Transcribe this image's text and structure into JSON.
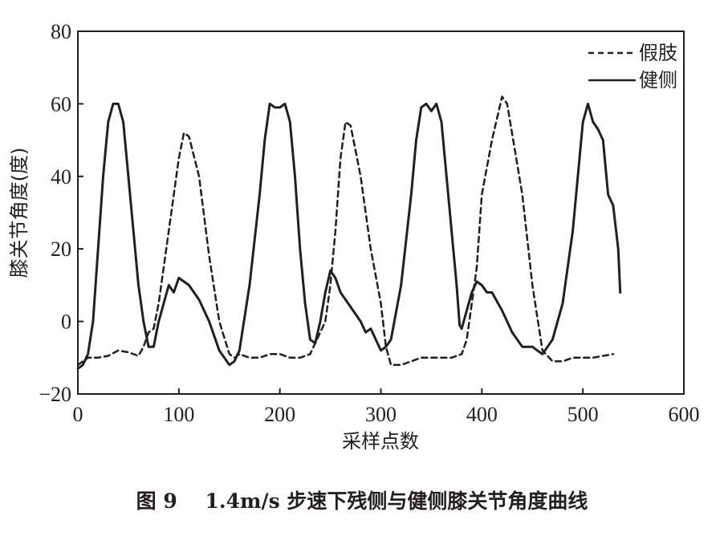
{
  "caption": "图 9    1.4m/s 步速下残侧与健侧膝关节角度曲线",
  "chart_data": {
    "type": "line",
    "title": "",
    "xlabel": "采样点数",
    "ylabel": "膝关节角度(度)",
    "xlim": [
      0,
      600
    ],
    "ylim": [
      -20,
      80
    ],
    "x_ticks": [
      "0",
      "100",
      "200",
      "300",
      "400",
      "500",
      "600"
    ],
    "y_ticks": [
      "−20",
      "0",
      "20",
      "40",
      "60",
      "80"
    ],
    "grid": false,
    "legend_position": "top-right",
    "series": [
      {
        "name": "假肢",
        "style": "dashed",
        "color": "#231f20",
        "points": [
          [
            0,
            -12
          ],
          [
            5,
            -11
          ],
          [
            10,
            -10
          ],
          [
            20,
            -10
          ],
          [
            30,
            -9.5
          ],
          [
            40,
            -8
          ],
          [
            50,
            -8.5
          ],
          [
            60,
            -9.5
          ],
          [
            65,
            -7
          ],
          [
            70,
            -3
          ],
          [
            75,
            -2
          ],
          [
            80,
            5
          ],
          [
            90,
            25
          ],
          [
            100,
            45
          ],
          [
            105,
            52
          ],
          [
            110,
            51
          ],
          [
            120,
            40
          ],
          [
            130,
            18
          ],
          [
            140,
            0
          ],
          [
            150,
            -9
          ],
          [
            155,
            -10
          ],
          [
            160,
            -9
          ],
          [
            170,
            -10
          ],
          [
            180,
            -10
          ],
          [
            190,
            -9
          ],
          [
            200,
            -9
          ],
          [
            210,
            -10
          ],
          [
            220,
            -10
          ],
          [
            230,
            -9
          ],
          [
            240,
            -3
          ],
          [
            245,
            0
          ],
          [
            250,
            10
          ],
          [
            255,
            25
          ],
          [
            260,
            45
          ],
          [
            265,
            55
          ],
          [
            270,
            54
          ],
          [
            280,
            40
          ],
          [
            290,
            20
          ],
          [
            300,
            5
          ],
          [
            305,
            -7
          ],
          [
            310,
            -12
          ],
          [
            320,
            -12
          ],
          [
            330,
            -11
          ],
          [
            340,
            -10
          ],
          [
            350,
            -10
          ],
          [
            360,
            -10
          ],
          [
            370,
            -10
          ],
          [
            380,
            -9
          ],
          [
            385,
            -5
          ],
          [
            390,
            5
          ],
          [
            395,
            15
          ],
          [
            400,
            35
          ],
          [
            410,
            50
          ],
          [
            420,
            62
          ],
          [
            425,
            60
          ],
          [
            440,
            35
          ],
          [
            450,
            10
          ],
          [
            460,
            -8
          ],
          [
            470,
            -11
          ],
          [
            480,
            -11
          ],
          [
            490,
            -10
          ],
          [
            500,
            -10
          ],
          [
            510,
            -10
          ],
          [
            520,
            -9.5
          ],
          [
            530,
            -9
          ]
        ]
      },
      {
        "name": "健侧",
        "style": "solid",
        "color": "#231f20",
        "points": [
          [
            0,
            -13
          ],
          [
            5,
            -12
          ],
          [
            10,
            -9
          ],
          [
            15,
            0
          ],
          [
            20,
            20
          ],
          [
            25,
            40
          ],
          [
            30,
            55
          ],
          [
            35,
            60
          ],
          [
            40,
            60
          ],
          [
            45,
            55
          ],
          [
            50,
            40
          ],
          [
            55,
            25
          ],
          [
            60,
            10
          ],
          [
            65,
            0
          ],
          [
            70,
            -7
          ],
          [
            75,
            -7
          ],
          [
            80,
            0
          ],
          [
            85,
            5
          ],
          [
            90,
            10
          ],
          [
            95,
            8
          ],
          [
            100,
            12
          ],
          [
            105,
            11
          ],
          [
            110,
            10
          ],
          [
            120,
            6
          ],
          [
            130,
            0
          ],
          [
            140,
            -8
          ],
          [
            150,
            -12
          ],
          [
            155,
            -11
          ],
          [
            160,
            -8
          ],
          [
            170,
            10
          ],
          [
            180,
            35
          ],
          [
            185,
            50
          ],
          [
            190,
            60
          ],
          [
            195,
            59
          ],
          [
            200,
            59
          ],
          [
            205,
            60
          ],
          [
            210,
            55
          ],
          [
            215,
            40
          ],
          [
            220,
            20
          ],
          [
            225,
            5
          ],
          [
            230,
            -5
          ],
          [
            235,
            -6
          ],
          [
            240,
            0
          ],
          [
            245,
            8
          ],
          [
            250,
            14
          ],
          [
            255,
            12
          ],
          [
            260,
            8
          ],
          [
            270,
            4
          ],
          [
            280,
            0
          ],
          [
            285,
            -3
          ],
          [
            290,
            -2
          ],
          [
            295,
            -5
          ],
          [
            300,
            -8
          ],
          [
            305,
            -7
          ],
          [
            310,
            -5
          ],
          [
            320,
            10
          ],
          [
            330,
            35
          ],
          [
            335,
            50
          ],
          [
            340,
            59
          ],
          [
            345,
            60
          ],
          [
            350,
            58
          ],
          [
            355,
            60
          ],
          [
            360,
            55
          ],
          [
            365,
            40
          ],
          [
            370,
            25
          ],
          [
            375,
            10
          ],
          [
            378,
            -1
          ],
          [
            380,
            -2
          ],
          [
            385,
            3
          ],
          [
            390,
            8
          ],
          [
            395,
            11
          ],
          [
            400,
            10
          ],
          [
            405,
            8
          ],
          [
            410,
            8
          ],
          [
            420,
            3
          ],
          [
            430,
            -3
          ],
          [
            440,
            -7
          ],
          [
            450,
            -7
          ],
          [
            455,
            -8
          ],
          [
            460,
            -9
          ],
          [
            470,
            -5
          ],
          [
            480,
            5
          ],
          [
            490,
            25
          ],
          [
            495,
            40
          ],
          [
            500,
            55
          ],
          [
            505,
            60
          ],
          [
            510,
            55
          ],
          [
            515,
            53
          ],
          [
            520,
            50
          ],
          [
            525,
            35
          ],
          [
            530,
            32
          ],
          [
            535,
            20
          ],
          [
            537,
            8
          ]
        ]
      }
    ]
  }
}
